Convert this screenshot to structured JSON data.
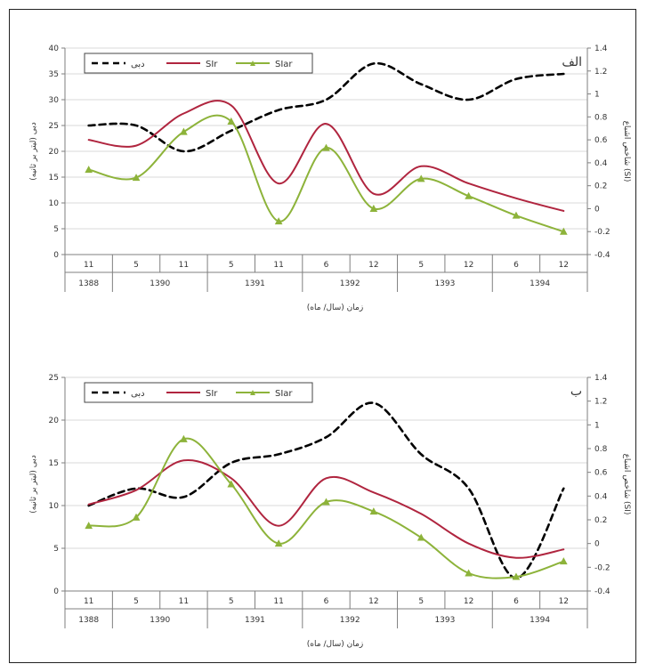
{
  "colors": {
    "debi": "#000000",
    "sir": "#b0253f",
    "siar": "#8db33a",
    "grid": "#d9d9d9",
    "axis": "#7f7f7f"
  },
  "legend": {
    "debi": "دبی",
    "sir": "SIr",
    "siar": "SIar"
  },
  "x_ticks_month": [
    "11",
    "5",
    "11",
    "5",
    "11",
    "6",
    "12",
    "5",
    "12",
    "6",
    "12"
  ],
  "x_groups": [
    {
      "label": "1388",
      "ticks": [
        0
      ]
    },
    {
      "label": "1390",
      "ticks": [
        1,
        2
      ]
    },
    {
      "label": "1391",
      "ticks": [
        3,
        4
      ]
    },
    {
      "label": "1392",
      "ticks": [
        5,
        6
      ]
    },
    {
      "label": "1393",
      "ticks": [
        7,
        8
      ]
    },
    {
      "label": "1394",
      "ticks": [
        9,
        10
      ]
    }
  ],
  "chart_data": [
    {
      "type": "line",
      "panel_label": "الف",
      "xlabel": "زمان (سال/ ماه)",
      "ylabel_left": "دبی (لیتر بر ثانیه)",
      "ylabel_right": "شاخص اشباع (SI)",
      "ylim_left": [
        0,
        40
      ],
      "yticks_left": [
        0,
        5,
        10,
        15,
        20,
        25,
        30,
        35,
        40
      ],
      "ylim_right": [
        -0.4,
        1.4
      ],
      "yticks_right": [
        "-0.4",
        "-0.2",
        "0",
        "0.2",
        "0.4",
        "0.6",
        "0.8",
        "1",
        "1.2",
        "1.4"
      ],
      "categories": [
        "11",
        "5",
        "11",
        "5",
        "11",
        "6",
        "12",
        "5",
        "12",
        "6",
        "12"
      ],
      "series": [
        {
          "name": "دبی",
          "axis": "left",
          "values": [
            25,
            25,
            20,
            24,
            28,
            30,
            37,
            33,
            30,
            34,
            35
          ]
        },
        {
          "name": "SIr",
          "axis": "right",
          "values": [
            0.6,
            0.55,
            0.83,
            0.9,
            0.22,
            0.74,
            0.13,
            0.37,
            0.22,
            0.09,
            -0.02
          ]
        },
        {
          "name": "SIar",
          "axis": "right",
          "values": [
            0.34,
            0.27,
            0.67,
            0.76,
            -0.11,
            0.53,
            0.0,
            0.26,
            0.11,
            -0.06,
            -0.2
          ]
        }
      ],
      "grid": true,
      "legend_position": "top-left"
    },
    {
      "type": "line",
      "panel_label": "ب",
      "xlabel": "زمان (سال/ ماه)",
      "ylabel_left": "دبی (لیتر بر ثانیه)",
      "ylabel_right": "شاخص اشباع (SI)",
      "ylim_left": [
        0,
        25
      ],
      "yticks_left": [
        0,
        5,
        10,
        15,
        20,
        25
      ],
      "ylim_right": [
        -0.4,
        1.4
      ],
      "yticks_right": [
        "-0.4",
        "-0.2",
        "0",
        "0.2",
        "0.4",
        "0.6",
        "0.8",
        "1",
        "1.2",
        "1.4"
      ],
      "categories": [
        "11",
        "5",
        "11",
        "5",
        "11",
        "6",
        "12",
        "5",
        "12",
        "6",
        "12"
      ],
      "series": [
        {
          "name": "دبی",
          "axis": "left",
          "values": [
            10,
            12,
            11,
            15,
            16,
            18,
            22,
            16,
            12,
            1.5,
            12
          ]
        },
        {
          "name": "SIr",
          "axis": "right",
          "values": [
            0.33,
            0.45,
            0.7,
            0.55,
            0.15,
            0.55,
            0.43,
            0.25,
            0.0,
            -0.12,
            -0.05
          ]
        },
        {
          "name": "SIar",
          "axis": "right",
          "values": [
            0.15,
            0.22,
            0.88,
            0.5,
            0.0,
            0.35,
            0.27,
            0.05,
            -0.25,
            -0.28,
            -0.15
          ]
        }
      ],
      "grid": true,
      "legend_position": "top-left"
    }
  ]
}
